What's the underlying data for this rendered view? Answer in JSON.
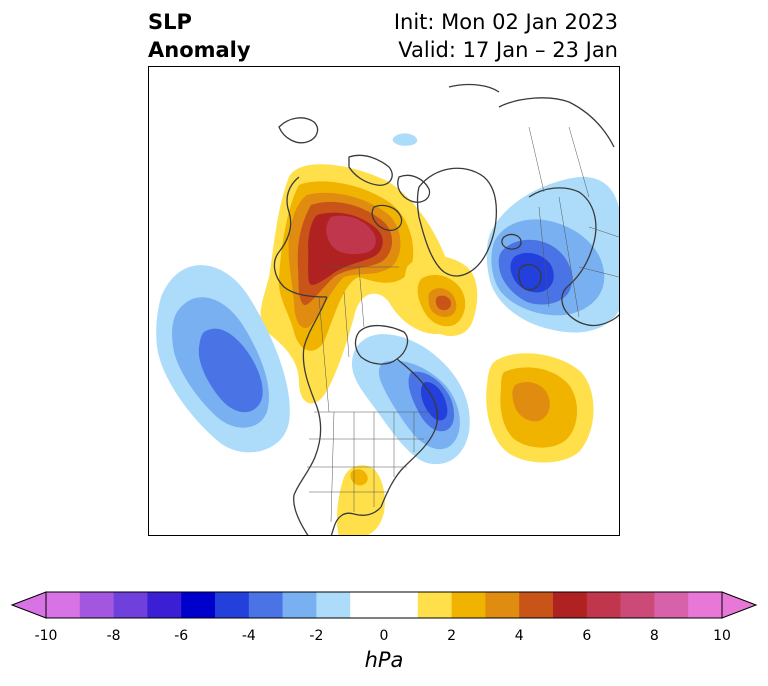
{
  "header": {
    "title_line1": "SLP",
    "title_line2": "Anomaly",
    "init": "Init: Mon 02 Jan 2023",
    "valid": "Valid: 17 Jan – 23 Jan"
  },
  "map": {
    "projection": "polar stereographic",
    "region": "North America / North Pacific / North Atlantic",
    "anomaly_centers": [
      {
        "name": "alaska-high",
        "value_hpa": 8
      },
      {
        "name": "northeast-pacific-low",
        "value_hpa": -4
      },
      {
        "name": "baffin-high",
        "value_hpa": 5
      },
      {
        "name": "scandinavia-low",
        "value_hpa": -6
      },
      {
        "name": "eastern-canada-low",
        "value_hpa": -6
      },
      {
        "name": "north-atlantic-high",
        "value_hpa": 4
      },
      {
        "name": "mexico-high",
        "value_hpa": 1
      }
    ]
  },
  "colorbar": {
    "unit": "hPa",
    "ticks": [
      "-10",
      "-8",
      "-6",
      "-4",
      "-2",
      "0",
      "2",
      "4",
      "6",
      "8",
      "10"
    ],
    "levels": [
      -10,
      -9,
      -8,
      -7,
      -6,
      -5,
      -4,
      -3,
      -2,
      -1,
      1,
      2,
      3,
      4,
      5,
      6,
      7,
      8,
      9,
      10
    ],
    "colors": [
      "#d873e6",
      "#a357e0",
      "#7040dd",
      "#3a1fd4",
      "#0000cc",
      "#2340dc",
      "#4a74e6",
      "#79b0f2",
      "#addcfa",
      "#ffffff",
      "#ffe04a",
      "#f0b400",
      "#e08c10",
      "#c85418",
      "#b02222",
      "#c0364c",
      "#cc4a78",
      "#d862aa",
      "#e878d8"
    ],
    "extend": "both"
  }
}
